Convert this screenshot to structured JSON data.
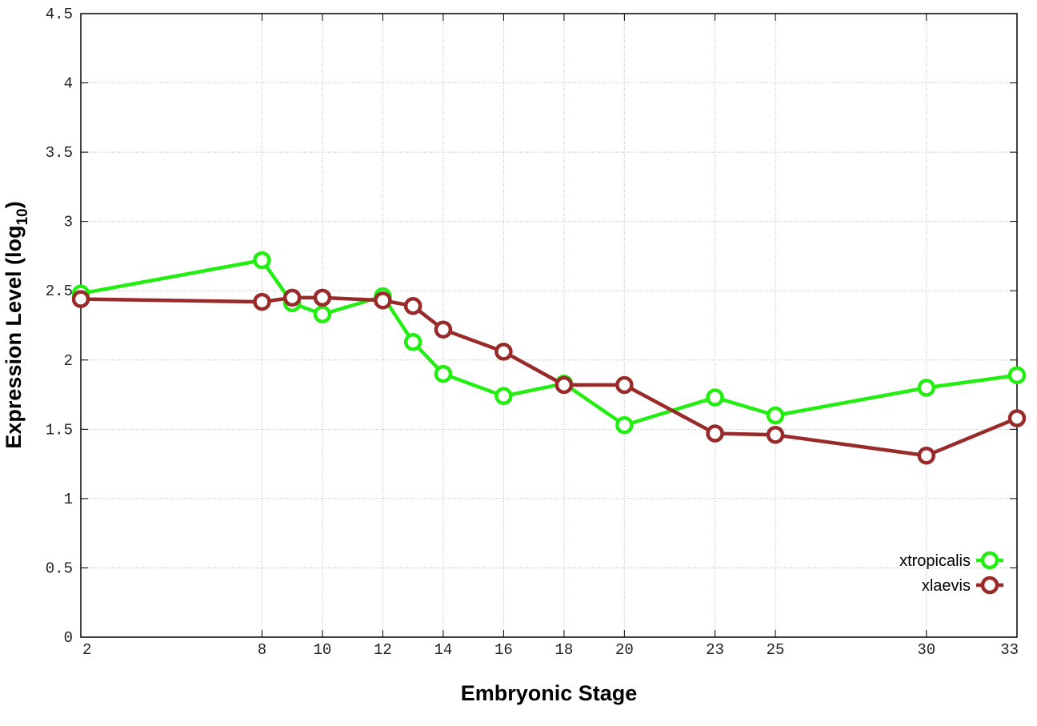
{
  "chart_data": {
    "type": "line",
    "xlabel": "Embryonic Stage",
    "ylabel_main": "Expression Level (log",
    "ylabel_sub": "10",
    "ylabel_close": ")",
    "xlim": [
      2,
      33
    ],
    "ylim": [
      0,
      4.5
    ],
    "x_ticks": [
      2,
      8,
      10,
      12,
      14,
      16,
      18,
      20,
      23,
      25,
      30,
      33
    ],
    "x_tick_labels": [
      "2",
      "8",
      "10",
      "12",
      "14",
      "16",
      "18",
      "20",
      "23",
      "25",
      "30",
      "33"
    ],
    "y_ticks": [
      0,
      0.5,
      1,
      1.5,
      2,
      2.5,
      3,
      3.5,
      4,
      4.5
    ],
    "y_tick_labels": [
      "0",
      "0.5",
      "1",
      "1.5",
      "2",
      "2.5",
      "3",
      "3.5",
      "4",
      "4.5"
    ],
    "grid": true,
    "legend_position": "bottom-right",
    "series": [
      {
        "name": "xtropicalis",
        "color": "#22ee11",
        "x": [
          2,
          8,
          9,
          10,
          12,
          13,
          14,
          16,
          18,
          20,
          23,
          25,
          30,
          33
        ],
        "y": [
          2.48,
          2.72,
          2.41,
          2.33,
          2.46,
          2.13,
          1.9,
          1.74,
          1.83,
          1.53,
          1.73,
          1.6,
          1.8,
          1.89
        ]
      },
      {
        "name": "xlaevis",
        "color": "#992a2a",
        "x": [
          2,
          8,
          9,
          10,
          12,
          13,
          14,
          16,
          18,
          20,
          23,
          25,
          30,
          33
        ],
        "y": [
          2.44,
          2.42,
          2.45,
          2.45,
          2.43,
          2.39,
          2.22,
          2.06,
          1.82,
          1.82,
          1.47,
          1.46,
          1.31,
          1.58
        ]
      }
    ]
  }
}
